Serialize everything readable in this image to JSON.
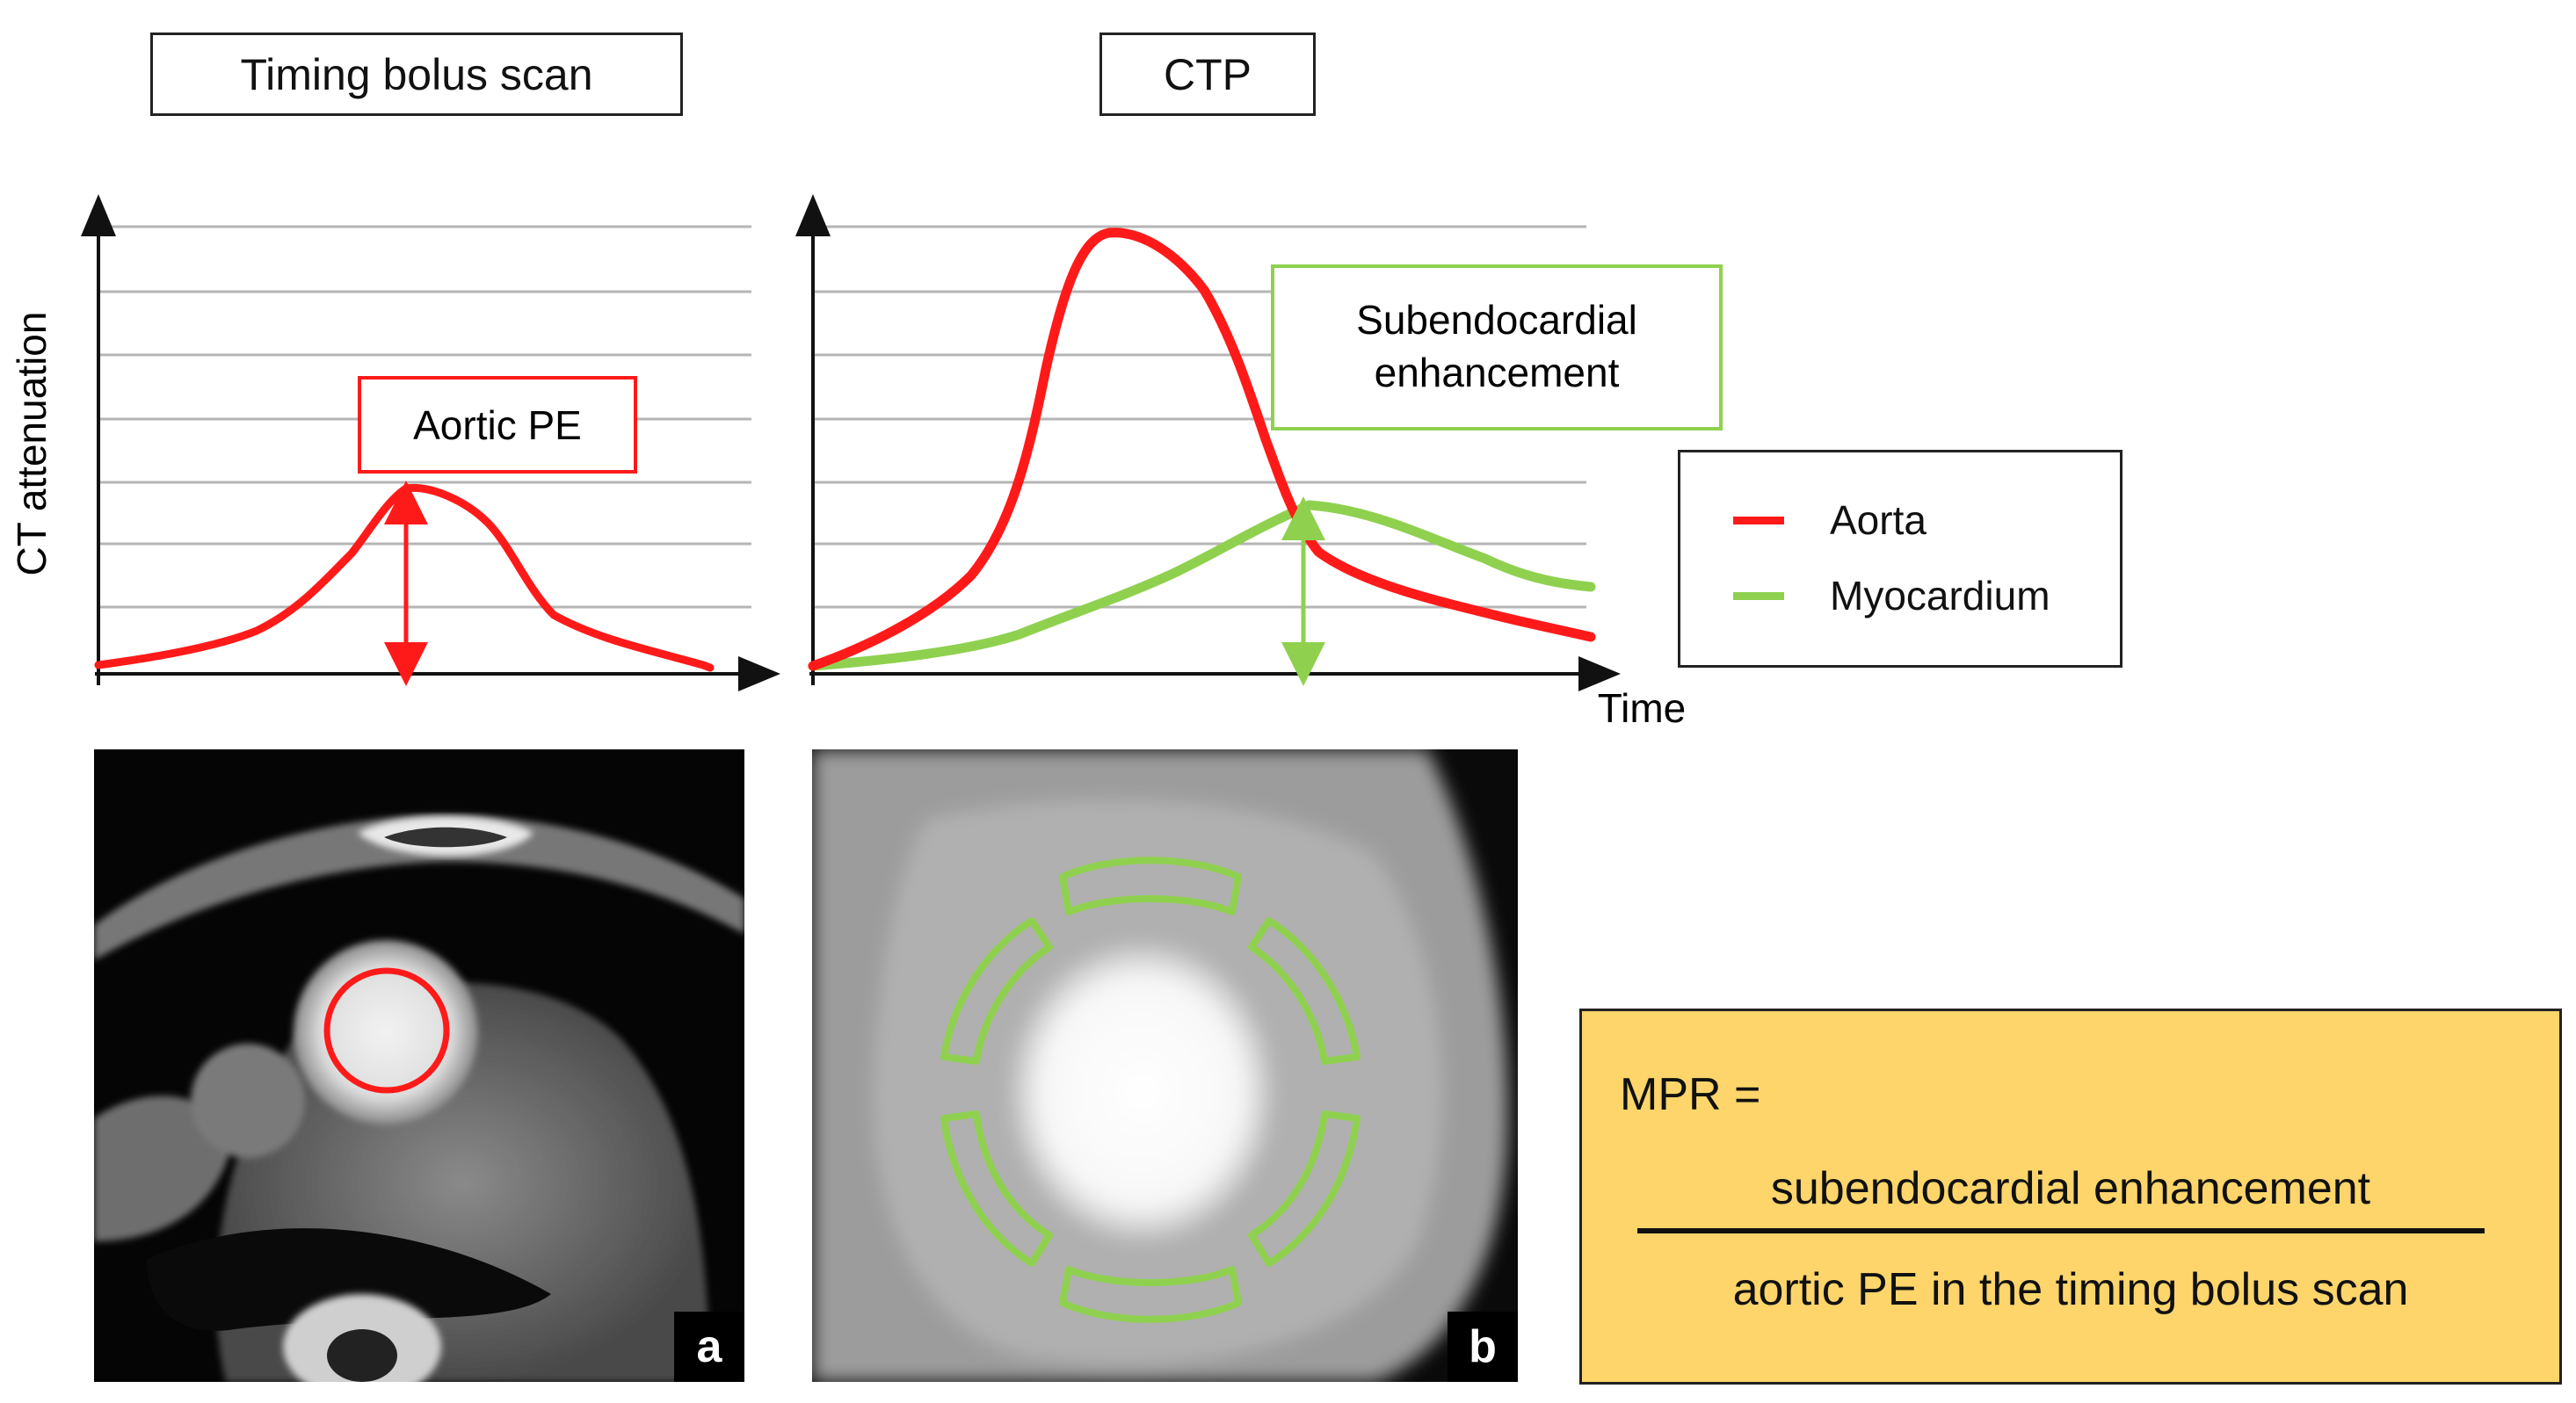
{
  "titles": {
    "left": "Timing bolus scan",
    "right": "CTP"
  },
  "axes": {
    "ylabel": "CT attenuation",
    "xlabel": "Time"
  },
  "annotations": {
    "aortic_pe": "Aortic PE",
    "subendocardial_line1": "Subendocardial",
    "subendocardial_line2": "enhancement"
  },
  "legend": {
    "items": [
      {
        "label": "Aorta",
        "color": "#ff1a1a"
      },
      {
        "label": "Myocardium",
        "color": "#8fd14f"
      }
    ]
  },
  "formula": {
    "lhs": "MPR =",
    "numerator": "subendocardial enhancement",
    "denominator": "aortic PE in the timing bolus scan"
  },
  "panels": {
    "a": "a",
    "b": "b"
  },
  "colors": {
    "aorta": "#ff1a1a",
    "myocardium": "#8fd14f",
    "formula_bg": "#fdd56b"
  }
}
